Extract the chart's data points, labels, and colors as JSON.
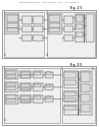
{
  "bg_color": "#ffffff",
  "header_text": "Patent Application Publication    Feb. 18, 2010 Sheet 17 of 17    US 2010/0038990 A1",
  "fig23_label": "Fig.23",
  "fig25_label": "Fig.25",
  "outer_bg": "#f7f7f5",
  "inner_bg": "#f0f0ee",
  "block_bg": "#e8e8e6",
  "block2_bg": "#dcdcda",
  "line_color": "#444444",
  "edge_color": "#555555",
  "text_color": "#222222"
}
